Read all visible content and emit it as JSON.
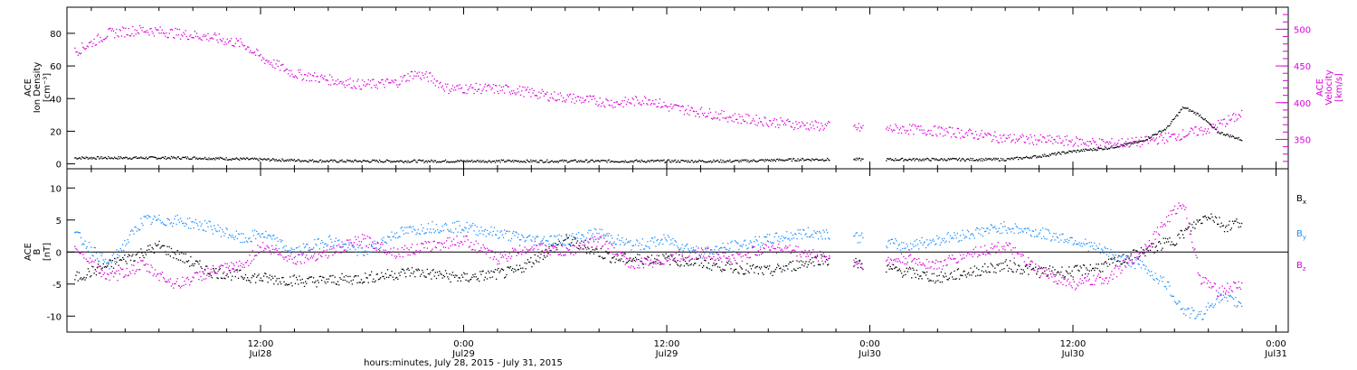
{
  "footer_label": "hours:minutes, July 28, 2015 - July 31, 2015",
  "colors": {
    "black": "#000000",
    "magenta": "#dd00dd",
    "blue": "#1e90ff"
  },
  "chart_data": [
    {
      "type": "scatter",
      "name": "top-panel",
      "ylabel": [
        "ACE",
        "Ion Density",
        "[cm⁻³]"
      ],
      "ylabel_right": [
        "ACE",
        "Velocity",
        "[km/s]"
      ],
      "left_axis": {
        "ylim": [
          -3,
          96
        ],
        "ticks": [
          0,
          20,
          40,
          60,
          80
        ]
      },
      "right_axis": {
        "ylim": [
          310,
          530
        ],
        "ticks": [
          350,
          400,
          450,
          500
        ]
      },
      "x_ticks": [
        "",
        "12:00",
        "0:00",
        "12:00",
        "0:00",
        "12:00",
        "0:00"
      ],
      "x_ticks_sub": [
        "",
        "Jul28",
        "Jul29",
        "Jul29",
        "Jul30",
        "Jul30",
        "Jul31"
      ],
      "x_range_hours": [
        -11.4,
        60
      ],
      "gap_hours": [
        [
          33.6,
          35.0
        ],
        [
          35.6,
          36.9
        ]
      ],
      "series": [
        {
          "name": "Ion Density",
          "axis": "left",
          "color": "black",
          "points": [
            [
              -11,
              4
            ],
            [
              -8,
              4
            ],
            [
              -4,
              4
            ],
            [
              0,
              3
            ],
            [
              4,
              2
            ],
            [
              8,
              2
            ],
            [
              12,
              2
            ],
            [
              16,
              2
            ],
            [
              20,
              2
            ],
            [
              24,
              2
            ],
            [
              28,
              2
            ],
            [
              32,
              3
            ],
            [
              36,
              3
            ],
            [
              40,
              3
            ],
            [
              44,
              3
            ],
            [
              46,
              5
            ],
            [
              48,
              8
            ],
            [
              50,
              10
            ],
            [
              52,
              14
            ],
            [
              53.5,
              22
            ],
            [
              54.5,
              35
            ],
            [
              55.5,
              30
            ],
            [
              56.5,
              20
            ],
            [
              58,
              15
            ]
          ]
        },
        {
          "name": "Velocity",
          "axis": "right",
          "color": "magenta",
          "points": [
            [
              -11,
              470
            ],
            [
              -9,
              495
            ],
            [
              -7,
              500
            ],
            [
              -5,
              495
            ],
            [
              -3,
              490
            ],
            [
              -1,
              480
            ],
            [
              0,
              462
            ],
            [
              2,
              440
            ],
            [
              4,
              432
            ],
            [
              6,
              425
            ],
            [
              8,
              428
            ],
            [
              9,
              440
            ],
            [
              10,
              435
            ],
            [
              11,
              420
            ],
            [
              13,
              420
            ],
            [
              15,
              418
            ],
            [
              17,
              410
            ],
            [
              19,
              405
            ],
            [
              21,
              400
            ],
            [
              23,
              405
            ],
            [
              24,
              395
            ],
            [
              26,
              388
            ],
            [
              28,
              380
            ],
            [
              30,
              375
            ],
            [
              32,
              370
            ],
            [
              34,
              368
            ],
            [
              36,
              365
            ],
            [
              38,
              365
            ],
            [
              40,
              362
            ],
            [
              42,
              358
            ],
            [
              44,
              352
            ],
            [
              46,
              350
            ],
            [
              48,
              348
            ],
            [
              50,
              345
            ],
            [
              52,
              347
            ],
            [
              54,
              355
            ],
            [
              56,
              365
            ],
            [
              58,
              385
            ]
          ]
        }
      ]
    },
    {
      "type": "scatter",
      "name": "bottom-panel",
      "ylabel": [
        "ACE",
        "B",
        "[nT]"
      ],
      "ylim": [
        -12.5,
        13
      ],
      "y_ticks": [
        -10,
        -5,
        0,
        5,
        10
      ],
      "x_ticks": [
        "",
        "12:00",
        "0:00",
        "12:00",
        "0:00",
        "12:00",
        "0:00"
      ],
      "x_ticks_sub": [
        "",
        "Jul28",
        "Jul29",
        "Jul29",
        "Jul30",
        "Jul30",
        "Jul31"
      ],
      "x_range_hours": [
        -11.4,
        60
      ],
      "gap_hours": [
        [
          33.6,
          35.0
        ],
        [
          35.6,
          36.9
        ]
      ],
      "series": [
        {
          "name": "Bx",
          "color": "black",
          "points": [
            [
              -11,
              -4
            ],
            [
              -8,
              -1
            ],
            [
              -6,
              1
            ],
            [
              -3,
              -3
            ],
            [
              0,
              -4
            ],
            [
              3,
              -4.5
            ],
            [
              6,
              -4
            ],
            [
              9,
              -3
            ],
            [
              12,
              -4
            ],
            [
              15,
              -3
            ],
            [
              18,
              2
            ],
            [
              21,
              -1
            ],
            [
              24,
              -1
            ],
            [
              27,
              -2
            ],
            [
              30,
              -3
            ],
            [
              33,
              -1
            ],
            [
              36,
              -2
            ],
            [
              38,
              -3
            ],
            [
              40,
              -4
            ],
            [
              42,
              -3
            ],
            [
              44,
              -2
            ],
            [
              46,
              -3
            ],
            [
              48,
              -3
            ],
            [
              50,
              -2
            ],
            [
              52,
              0
            ],
            [
              54,
              2
            ],
            [
              55,
              4
            ],
            [
              56,
              6
            ],
            [
              57,
              4
            ],
            [
              58,
              5
            ]
          ]
        },
        {
          "name": "By",
          "color": "blue",
          "points": [
            [
              -11,
              3
            ],
            [
              -9,
              -2
            ],
            [
              -7,
              5
            ],
            [
              -5,
              5
            ],
            [
              -3,
              4
            ],
            [
              -1,
              2
            ],
            [
              0,
              3
            ],
            [
              2,
              0
            ],
            [
              4,
              2
            ],
            [
              6,
              0
            ],
            [
              8,
              3
            ],
            [
              10,
              4
            ],
            [
              12,
              4
            ],
            [
              14,
              3
            ],
            [
              16,
              2
            ],
            [
              18,
              2
            ],
            [
              20,
              3
            ],
            [
              22,
              1
            ],
            [
              24,
              2
            ],
            [
              26,
              0
            ],
            [
              28,
              1
            ],
            [
              30,
              2
            ],
            [
              32,
              3
            ],
            [
              34,
              3
            ],
            [
              36,
              2
            ],
            [
              38,
              1
            ],
            [
              40,
              2
            ],
            [
              42,
              3
            ],
            [
              44,
              4
            ],
            [
              46,
              3
            ],
            [
              48,
              2
            ],
            [
              50,
              0
            ],
            [
              52,
              -2
            ],
            [
              53.5,
              -5
            ],
            [
              54.5,
              -9
            ],
            [
              55.5,
              -10
            ],
            [
              56.5,
              -7
            ],
            [
              58,
              -8
            ]
          ]
        },
        {
          "name": "Bz",
          "color": "magenta",
          "points": [
            [
              -11,
              1
            ],
            [
              -9,
              -4
            ],
            [
              -7,
              -2
            ],
            [
              -5,
              -5
            ],
            [
              -3,
              -3
            ],
            [
              -1,
              -2
            ],
            [
              0,
              1
            ],
            [
              2,
              -1
            ],
            [
              4,
              0
            ],
            [
              6,
              2
            ],
            [
              8,
              0
            ],
            [
              10,
              1
            ],
            [
              12,
              2
            ],
            [
              14,
              -1
            ],
            [
              16,
              1
            ],
            [
              18,
              0
            ],
            [
              20,
              2
            ],
            [
              22,
              -2
            ],
            [
              24,
              -1
            ],
            [
              26,
              0
            ],
            [
              28,
              -1
            ],
            [
              30,
              1
            ],
            [
              32,
              0
            ],
            [
              34,
              -1
            ],
            [
              36,
              -2
            ],
            [
              38,
              -1
            ],
            [
              40,
              -2
            ],
            [
              42,
              0
            ],
            [
              44,
              1
            ],
            [
              46,
              -3
            ],
            [
              48,
              -5
            ],
            [
              50,
              -4
            ],
            [
              52,
              0
            ],
            [
              53.5,
              5
            ],
            [
              54.5,
              8
            ],
            [
              55.5,
              -4
            ],
            [
              56.5,
              -6
            ],
            [
              58,
              -5
            ]
          ]
        }
      ],
      "legend": [
        "Bx",
        "By",
        "Bz"
      ]
    }
  ]
}
